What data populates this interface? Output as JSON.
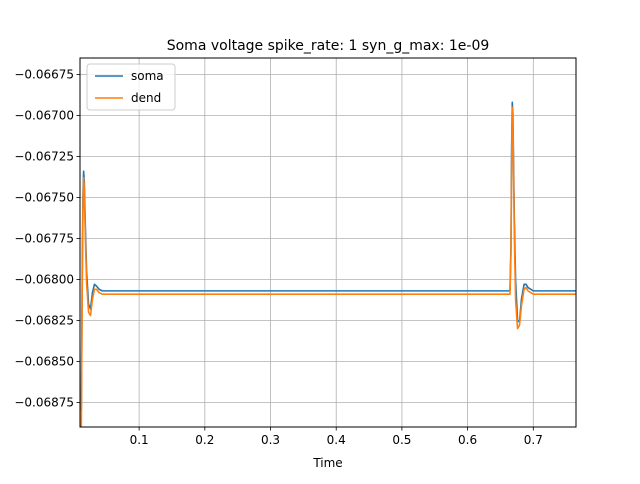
{
  "chart_data": {
    "type": "line",
    "title": "Soma voltage spike_rate: 1 syn_g_max: 1e-09",
    "xlabel": "Time",
    "ylabel": "",
    "xlim": [
      0.01,
      0.765
    ],
    "ylim": [
      -0.0689,
      -0.06665
    ],
    "xticks": [
      0.1,
      0.2,
      0.3,
      0.4,
      0.5,
      0.6,
      0.7
    ],
    "xtick_labels": [
      "0.1",
      "0.2",
      "0.3",
      "0.4",
      "0.5",
      "0.6",
      "0.7"
    ],
    "yticks": [
      -0.06675,
      -0.067,
      -0.06725,
      -0.0675,
      -0.06775,
      -0.068,
      -0.06825,
      -0.0685,
      -0.06875
    ],
    "ytick_labels": [
      "−0.06675",
      "−0.06700",
      "−0.06725",
      "−0.06750",
      "−0.06775",
      "−0.06800",
      "−0.06825",
      "−0.06850",
      "−0.06875"
    ],
    "grid": true,
    "legend_position": "top-left",
    "series": [
      {
        "name": "soma",
        "color": "#1f77b4",
        "x": [
          0.012,
          0.0135,
          0.0145,
          0.0155,
          0.0165,
          0.018,
          0.02,
          0.023,
          0.026,
          0.029,
          0.032,
          0.035,
          0.039,
          0.044,
          0.05,
          0.06,
          0.1,
          0.3,
          0.5,
          0.6,
          0.6645,
          0.666,
          0.667,
          0.668,
          0.669,
          0.671,
          0.673,
          0.676,
          0.679,
          0.682,
          0.686,
          0.689,
          0.692,
          0.696,
          0.7,
          0.71,
          0.73,
          0.765
        ],
        "y": [
          -0.0688,
          -0.0679,
          -0.0675,
          -0.06734,
          -0.0674,
          -0.06765,
          -0.06795,
          -0.06815,
          -0.06818,
          -0.06808,
          -0.06803,
          -0.06804,
          -0.06806,
          -0.06807,
          -0.06807,
          -0.06807,
          -0.06807,
          -0.06807,
          -0.06807,
          -0.06807,
          -0.06807,
          -0.0678,
          -0.0672,
          -0.06692,
          -0.067,
          -0.0676,
          -0.068,
          -0.06825,
          -0.06826,
          -0.06812,
          -0.06803,
          -0.06803,
          -0.06805,
          -0.06806,
          -0.06807,
          -0.06807,
          -0.06807,
          -0.06807
        ]
      },
      {
        "name": "dend",
        "color": "#ff7f0e",
        "x": [
          0.012,
          0.0135,
          0.0145,
          0.0155,
          0.0165,
          0.018,
          0.02,
          0.023,
          0.026,
          0.029,
          0.032,
          0.035,
          0.039,
          0.044,
          0.05,
          0.06,
          0.1,
          0.3,
          0.5,
          0.6,
          0.6645,
          0.666,
          0.667,
          0.668,
          0.669,
          0.671,
          0.673,
          0.676,
          0.679,
          0.682,
          0.686,
          0.689,
          0.692,
          0.696,
          0.7,
          0.71,
          0.73,
          0.765
        ],
        "y": [
          -0.0689,
          -0.068,
          -0.06758,
          -0.06738,
          -0.06745,
          -0.06772,
          -0.06802,
          -0.0682,
          -0.06822,
          -0.06812,
          -0.06806,
          -0.06806,
          -0.06808,
          -0.06809,
          -0.06809,
          -0.06809,
          -0.06809,
          -0.06809,
          -0.06809,
          -0.06809,
          -0.06809,
          -0.06785,
          -0.0673,
          -0.06695,
          -0.06705,
          -0.0677,
          -0.06812,
          -0.0683,
          -0.06828,
          -0.06816,
          -0.06806,
          -0.06805,
          -0.06807,
          -0.06808,
          -0.06809,
          -0.06809,
          -0.06809,
          -0.06809
        ]
      }
    ]
  }
}
